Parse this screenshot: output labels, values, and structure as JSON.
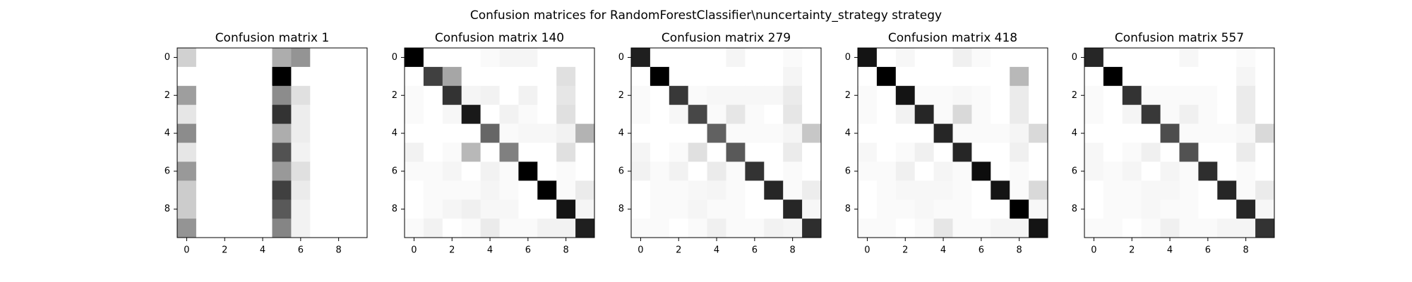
{
  "figure": {
    "suptitle": "Confusion matrices for RandomForestClassifier\\nuncertainty_strategy strategy"
  },
  "chart_data": [
    {
      "type": "heatmap",
      "title": "Confusion matrix 1",
      "colormap": "gray_r",
      "xticks": [
        0,
        2,
        4,
        6,
        8
      ],
      "yticks": [
        0,
        2,
        4,
        6,
        8
      ],
      "values": [
        [
          0.18,
          0,
          0,
          0,
          0,
          0.32,
          0.42,
          0,
          0,
          0
        ],
        [
          0,
          0,
          0,
          0,
          0,
          1.0,
          0,
          0,
          0,
          0
        ],
        [
          0.38,
          0,
          0,
          0,
          0,
          0.45,
          0.12,
          0,
          0,
          0
        ],
        [
          0.1,
          0,
          0,
          0,
          0,
          0.8,
          0.07,
          0,
          0,
          0
        ],
        [
          0.45,
          0,
          0,
          0,
          0,
          0.32,
          0.07,
          0,
          0,
          0
        ],
        [
          0.1,
          0,
          0,
          0,
          0,
          0.68,
          0.05,
          0,
          0,
          0
        ],
        [
          0.4,
          0,
          0,
          0,
          0,
          0.4,
          0.12,
          0,
          0,
          0
        ],
        [
          0.2,
          0,
          0,
          0,
          0,
          0.75,
          0.08,
          0,
          0,
          0
        ],
        [
          0.2,
          0,
          0,
          0,
          0,
          0.65,
          0.05,
          0,
          0,
          0
        ],
        [
          0.42,
          0,
          0,
          0,
          0,
          0.48,
          0.05,
          0,
          0,
          0
        ]
      ]
    },
    {
      "type": "heatmap",
      "title": "Confusion matrix 140",
      "colormap": "gray_r",
      "xticks": [
        0,
        2,
        4,
        6,
        8
      ],
      "yticks": [
        0,
        2,
        4,
        6,
        8
      ],
      "values": [
        [
          1.0,
          0,
          0,
          0,
          0.02,
          0.04,
          0.04,
          0,
          0,
          0
        ],
        [
          0,
          0.75,
          0.35,
          0,
          0,
          0,
          0,
          0,
          0.12,
          0
        ],
        [
          0.02,
          0,
          0.8,
          0.04,
          0.05,
          0,
          0.05,
          0,
          0.1,
          0
        ],
        [
          0.02,
          0,
          0.03,
          0.9,
          0,
          0.05,
          0.02,
          0,
          0.12,
          0
        ],
        [
          0,
          0,
          0,
          0,
          0.6,
          0.02,
          0.03,
          0.03,
          0.05,
          0.3
        ],
        [
          0.05,
          0,
          0.02,
          0.28,
          0,
          0.5,
          0,
          0,
          0.12,
          0
        ],
        [
          0.02,
          0.02,
          0.04,
          0,
          0.05,
          0.02,
          1.0,
          0,
          0.02,
          0
        ],
        [
          0,
          0.02,
          0.02,
          0.02,
          0.04,
          0.02,
          0,
          1.0,
          0.02,
          0.08
        ],
        [
          0,
          0.02,
          0.04,
          0.06,
          0.03,
          0.03,
          0,
          0,
          0.92,
          0.04
        ],
        [
          0.02,
          0.05,
          0,
          0.02,
          0.08,
          0.02,
          0.02,
          0.05,
          0.05,
          0.88
        ]
      ]
    },
    {
      "type": "heatmap",
      "title": "Confusion matrix 279",
      "colormap": "gray_r",
      "xticks": [
        0,
        2,
        4,
        6,
        8
      ],
      "yticks": [
        0,
        2,
        4,
        6,
        8
      ],
      "values": [
        [
          0.88,
          0,
          0,
          0,
          0,
          0.04,
          0,
          0,
          0.02,
          0
        ],
        [
          0,
          1.0,
          0,
          0,
          0,
          0,
          0,
          0,
          0.04,
          0
        ],
        [
          0.02,
          0,
          0.78,
          0.02,
          0.03,
          0.03,
          0.03,
          0.03,
          0.08,
          0
        ],
        [
          0.02,
          0,
          0.03,
          0.72,
          0.02,
          0.1,
          0.02,
          0,
          0.1,
          0
        ],
        [
          0,
          0,
          0,
          0,
          0.62,
          0.02,
          0.02,
          0.02,
          0.04,
          0.22
        ],
        [
          0.04,
          0,
          0.02,
          0.12,
          0,
          0.65,
          0,
          0,
          0.08,
          0
        ],
        [
          0.05,
          0.02,
          0.05,
          0,
          0.08,
          0.02,
          0.8,
          0,
          0.02,
          0
        ],
        [
          0,
          0.02,
          0.02,
          0.03,
          0.04,
          0.02,
          0,
          0.85,
          0.02,
          0.07
        ],
        [
          0,
          0.02,
          0.02,
          0.04,
          0.02,
          0.02,
          0,
          0,
          0.85,
          0.03
        ],
        [
          0.02,
          0.02,
          0,
          0.02,
          0.06,
          0.02,
          0.02,
          0.05,
          0.04,
          0.82
        ]
      ]
    },
    {
      "type": "heatmap",
      "title": "Confusion matrix 418",
      "colormap": "gray_r",
      "xticks": [
        0,
        2,
        4,
        6,
        8
      ],
      "yticks": [
        0,
        2,
        4,
        6,
        8
      ],
      "values": [
        [
          0.92,
          0,
          0.03,
          0,
          0,
          0.06,
          0.02,
          0,
          0,
          0
        ],
        [
          0,
          1.0,
          0,
          0,
          0,
          0,
          0,
          0,
          0.28,
          0
        ],
        [
          0.02,
          0,
          0.92,
          0.02,
          0.02,
          0.03,
          0.02,
          0,
          0.08,
          0
        ],
        [
          0.02,
          0,
          0.05,
          0.85,
          0.02,
          0.15,
          0.02,
          0,
          0.08,
          0
        ],
        [
          0,
          0,
          0,
          0,
          0.85,
          0.02,
          0.02,
          0.02,
          0.04,
          0.15
        ],
        [
          0.03,
          0,
          0.02,
          0.06,
          0,
          0.85,
          0,
          0,
          0.06,
          0
        ],
        [
          0.02,
          0.02,
          0.06,
          0,
          0.04,
          0.02,
          0.95,
          0,
          0.02,
          0
        ],
        [
          0,
          0.02,
          0.03,
          0.03,
          0.03,
          0.02,
          0,
          0.92,
          0.02,
          0.15
        ],
        [
          0,
          0.02,
          0.02,
          0.03,
          0.02,
          0.02,
          0,
          0,
          1.0,
          0.03
        ],
        [
          0.02,
          0.02,
          0,
          0.02,
          0.1,
          0.02,
          0.02,
          0.04,
          0.04,
          0.92
        ]
      ]
    },
    {
      "type": "heatmap",
      "title": "Confusion matrix 557",
      "colormap": "gray_r",
      "xticks": [
        0,
        2,
        4,
        6,
        8
      ],
      "yticks": [
        0,
        2,
        4,
        6,
        8
      ],
      "values": [
        [
          0.85,
          0,
          0,
          0,
          0,
          0.03,
          0,
          0,
          0.02,
          0
        ],
        [
          0,
          1.0,
          0,
          0,
          0,
          0,
          0,
          0,
          0.04,
          0
        ],
        [
          0.02,
          0,
          0.8,
          0.02,
          0.02,
          0.02,
          0.02,
          0,
          0.08,
          0
        ],
        [
          0.02,
          0,
          0.04,
          0.78,
          0.02,
          0.06,
          0.02,
          0,
          0.08,
          0
        ],
        [
          0,
          0,
          0,
          0,
          0.7,
          0.02,
          0.02,
          0.02,
          0.03,
          0.15
        ],
        [
          0.03,
          0,
          0.02,
          0.06,
          0,
          0.68,
          0,
          0,
          0.08,
          0
        ],
        [
          0.03,
          0.02,
          0.04,
          0,
          0.04,
          0.02,
          0.82,
          0,
          0.02,
          0
        ],
        [
          0,
          0.02,
          0.02,
          0.03,
          0.03,
          0.02,
          0,
          0.85,
          0.02,
          0.08
        ],
        [
          0,
          0.02,
          0.02,
          0.03,
          0.02,
          0.02,
          0,
          0,
          0.85,
          0.03
        ],
        [
          0.02,
          0.02,
          0,
          0.02,
          0.06,
          0.02,
          0.02,
          0.04,
          0.04,
          0.8
        ]
      ]
    }
  ]
}
